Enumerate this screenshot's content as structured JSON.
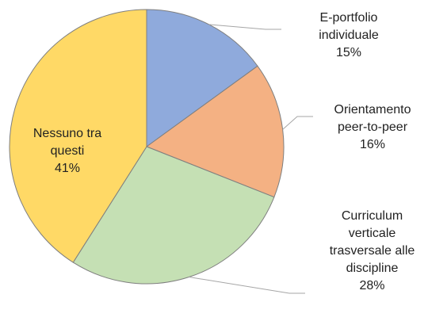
{
  "chart_data": {
    "type": "pie",
    "categories": [
      "E-portfolio individuale",
      "Orientamento peer-to-peer",
      "Curriculum verticale trasversale alle discipline",
      "Nessuno tra questi"
    ],
    "values": [
      15,
      16,
      28,
      41
    ],
    "value_labels": [
      "15%",
      "16%",
      "28%",
      "41%"
    ],
    "colors": [
      "#8faadc",
      "#f4b183",
      "#c5e0b4",
      "#ffd966"
    ]
  }
}
